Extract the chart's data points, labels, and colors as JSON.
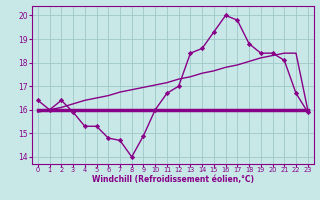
{
  "xlabel": "Windchill (Refroidissement éolien,°C)",
  "x": [
    0,
    1,
    2,
    3,
    4,
    5,
    6,
    7,
    8,
    9,
    10,
    11,
    12,
    13,
    14,
    15,
    16,
    17,
    18,
    19,
    20,
    21,
    22,
    23
  ],
  "line1": [
    16.4,
    16.0,
    16.4,
    15.9,
    15.3,
    15.3,
    14.8,
    14.7,
    14.0,
    14.9,
    16.0,
    16.7,
    17.0,
    18.4,
    18.6,
    19.3,
    20.0,
    19.8,
    18.8,
    18.4,
    18.4,
    18.1,
    16.7,
    15.9
  ],
  "line2": [
    16.0,
    16.0,
    16.0,
    16.0,
    16.0,
    16.0,
    16.0,
    16.0,
    16.0,
    16.0,
    16.0,
    16.0,
    16.0,
    16.0,
    16.0,
    16.0,
    16.0,
    16.0,
    16.0,
    16.0,
    16.0,
    16.0,
    16.0,
    16.0
  ],
  "line3": [
    15.9,
    16.0,
    16.1,
    16.25,
    16.4,
    16.5,
    16.6,
    16.75,
    16.85,
    16.95,
    17.05,
    17.15,
    17.3,
    17.4,
    17.55,
    17.65,
    17.8,
    17.9,
    18.05,
    18.2,
    18.3,
    18.4,
    18.4,
    16.0
  ],
  "line_color": "#880088",
  "bg_color": "#c8e8e8",
  "grid_color": "#a0c8c8",
  "ylim": [
    13.7,
    20.4
  ],
  "yticks": [
    14,
    15,
    16,
    17,
    18,
    19,
    20
  ],
  "xticks": [
    0,
    1,
    2,
    3,
    4,
    5,
    6,
    7,
    8,
    9,
    10,
    11,
    12,
    13,
    14,
    15,
    16,
    17,
    18,
    19,
    20,
    21,
    22,
    23
  ]
}
